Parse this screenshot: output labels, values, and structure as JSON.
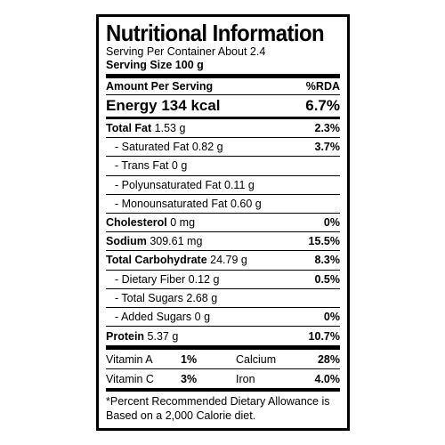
{
  "label": {
    "title": "Nutritional Information",
    "serving_per_container": "Serving Per Container About 2.4",
    "serving_size": "Serving Size 100 g",
    "header": {
      "left": "Amount Per Serving",
      "right": "%RDA"
    },
    "energy": {
      "name": "Energy 134 kcal",
      "pct": "6.7%"
    },
    "rows": [
      {
        "name": "Total Fat",
        "amount": "1.53 g",
        "pct": "2.3%"
      },
      {
        "name": "- Saturated Fat",
        "amount": "0.82 g",
        "pct": "3.7%"
      },
      {
        "name": "- Trans Fat",
        "amount": "0 g",
        "pct": ""
      },
      {
        "name": "- Polyunsaturated Fat",
        "amount": "0.11 g",
        "pct": ""
      },
      {
        "name": "- Monounsaturated Fat",
        "amount": "0.60 g",
        "pct": ""
      },
      {
        "name": "Cholesterol",
        "amount": "0 mg",
        "pct": "0%"
      },
      {
        "name": "Sodium",
        "amount": "309.61 mg",
        "pct": "15.5%"
      },
      {
        "name": "Total Carbohydrate",
        "amount": "24.79 g",
        "pct": "8.3%"
      },
      {
        "name": "- Dietary Fiber",
        "amount": "0.12 g",
        "pct": "0.5%"
      },
      {
        "name": "- Total Sugars",
        "amount": "2.68 g",
        "pct": ""
      },
      {
        "name": "- Added Sugars",
        "amount": "0 g",
        "pct": "0%"
      },
      {
        "name": "Protein",
        "amount": "5.37 g",
        "pct": "10.7%"
      }
    ],
    "vitamins": [
      {
        "name1": "Vitamin A",
        "val1": "1%",
        "name2": "Calcium",
        "val2": "28%"
      },
      {
        "name1": "Vitamin C",
        "val1": "3%",
        "name2": "Iron",
        "val2": "4.0%"
      }
    ],
    "footnote_line1": "*Percent Recommended Dietary Allowance is",
    "footnote_line2": "Based on a 2,000 Calorie diet."
  }
}
